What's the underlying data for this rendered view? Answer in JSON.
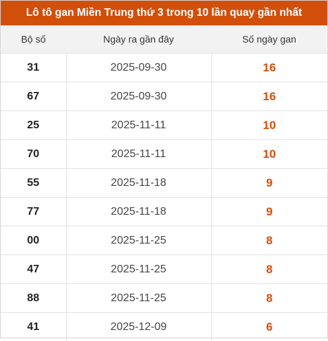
{
  "title": "Lô tô gan Miền Trung thứ 3 trong 10 lần quay gần nhất",
  "header": {
    "col1": "Bộ số",
    "col2": "Ngày ra gần đây",
    "col3": "Số ngày gan"
  },
  "accent_color": "#d24f0b",
  "rows": [
    {
      "number": "31",
      "date": "2025-09-30",
      "days": "16"
    },
    {
      "number": "67",
      "date": "2025-09-30",
      "days": "16"
    },
    {
      "number": "25",
      "date": "2025-11-11",
      "days": "10"
    },
    {
      "number": "70",
      "date": "2025-11-11",
      "days": "10"
    },
    {
      "number": "55",
      "date": "2025-11-18",
      "days": "9"
    },
    {
      "number": "77",
      "date": "2025-11-18",
      "days": "9"
    },
    {
      "number": "00",
      "date": "2025-11-25",
      "days": "8"
    },
    {
      "number": "47",
      "date": "2025-11-25",
      "days": "8"
    },
    {
      "number": "88",
      "date": "2025-11-25",
      "days": "8"
    },
    {
      "number": "41",
      "date": "2025-12-09",
      "days": "6"
    }
  ]
}
